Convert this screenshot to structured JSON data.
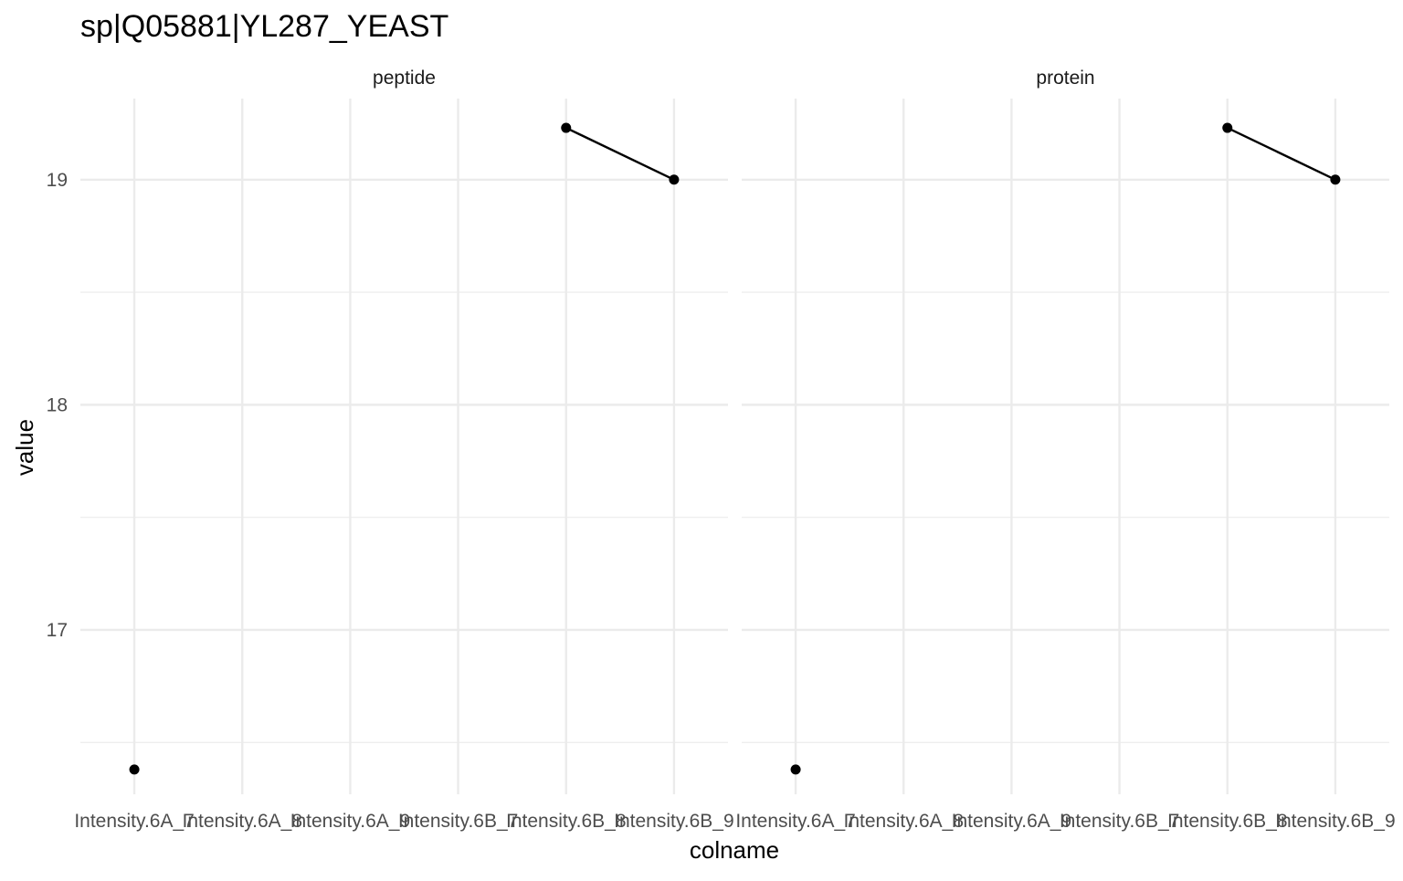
{
  "chart_data": {
    "type": "line",
    "title": "sp|Q05881|YL287_YEAST",
    "xlabel": "colname",
    "ylabel": "value",
    "categories": [
      "Intensity.6A_7",
      "Intensity.6A_8",
      "Intensity.6A_9",
      "Intensity.6B_7",
      "Intensity.6B_8",
      "Intensity.6B_9"
    ],
    "ylim": [
      16.27,
      19.36
    ],
    "yticks": [
      17,
      18,
      19
    ],
    "grid": true,
    "colors": {
      "background": "#ffffff",
      "grid": "#ebebeb",
      "series": "#000000",
      "text": "#4d4d4d",
      "title": "#000000"
    },
    "facets": [
      {
        "label": "peptide",
        "series": [
          {
            "values": [
              16.38,
              null,
              null,
              null,
              19.23,
              19.0
            ]
          }
        ]
      },
      {
        "label": "protein",
        "series": [
          {
            "values": [
              16.38,
              null,
              null,
              null,
              19.23,
              19.0
            ]
          }
        ]
      }
    ]
  }
}
